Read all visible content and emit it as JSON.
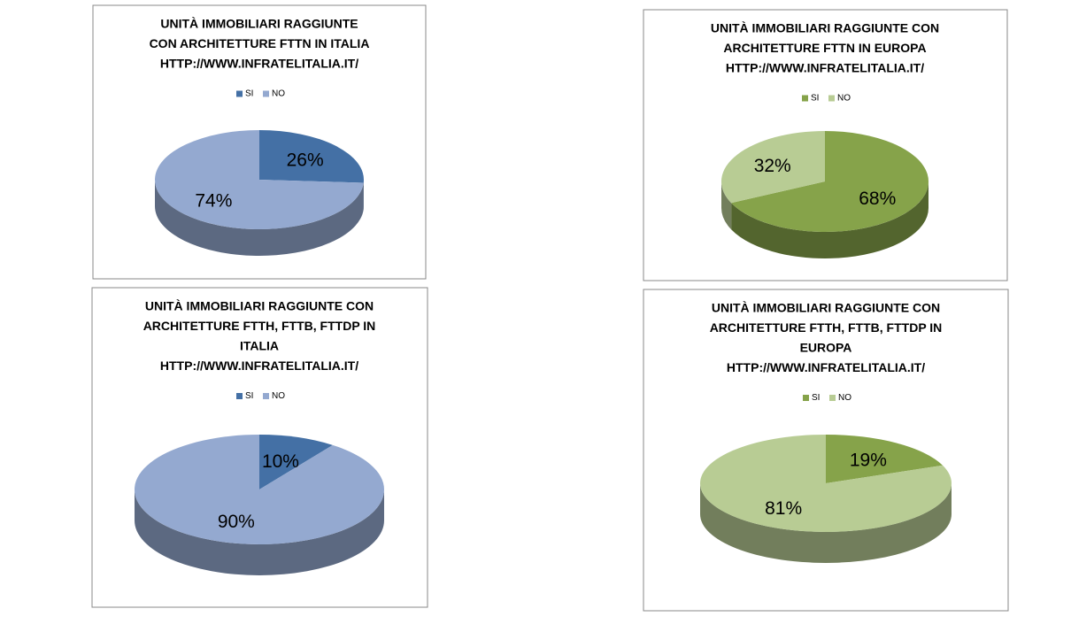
{
  "chart_data": [
    {
      "type": "pie",
      "title": [
        "UNITÀ IMMOBILIARI RAGGIUNTE",
        "CON ARCHITETTURE FTTN IN ITALIA",
        "HTTP://WWW.INFRATELITALIA.IT/"
      ],
      "categories": [
        "SI",
        "NO"
      ],
      "values": [
        26,
        74
      ],
      "value_labels": [
        "26%",
        "74%"
      ],
      "colors": [
        "#4470a5",
        "#94a9d0"
      ]
    },
    {
      "type": "pie",
      "title": [
        "UNITÀ IMMOBILIARI RAGGIUNTE CON",
        "ARCHITETTURE FTTN IN EUROPA",
        "HTTP://WWW.INFRATELITALIA.IT/"
      ],
      "categories": [
        "SI",
        "NO"
      ],
      "values": [
        68,
        32
      ],
      "value_labels": [
        "68%",
        "32%"
      ],
      "colors": [
        "#86a34a",
        "#b8cc94"
      ]
    },
    {
      "type": "pie",
      "title": [
        "UNITÀ IMMOBILIARI RAGGIUNTE CON",
        "ARCHITETTURE FTTH, FTTB, FTTDP IN",
        "ITALIA",
        "HTTP://WWW.INFRATELITALIA.IT/"
      ],
      "categories": [
        "SI",
        "NO"
      ],
      "values": [
        10,
        90
      ],
      "value_labels": [
        "10%",
        "90%"
      ],
      "colors": [
        "#4470a5",
        "#94a9d0"
      ]
    },
    {
      "type": "pie",
      "title": [
        "UNITÀ IMMOBILIARI RAGGIUNTE CON",
        "ARCHITETTURE FTTH, FTTB, FTTDP IN",
        "EUROPA",
        "HTTP://WWW.INFRATELITALIA.IT/"
      ],
      "categories": [
        "SI",
        "NO"
      ],
      "values": [
        19,
        81
      ],
      "value_labels": [
        "19%",
        "81%"
      ],
      "colors": [
        "#86a34a",
        "#b8cc94"
      ]
    }
  ]
}
